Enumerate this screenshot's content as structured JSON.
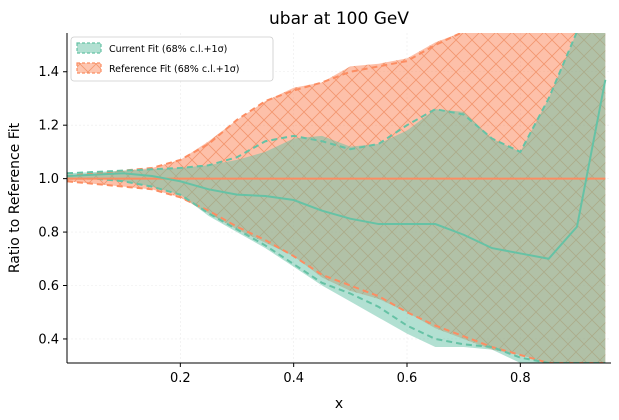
{
  "chart_data": {
    "type": "area",
    "title": "ubar at 100 GeV",
    "xlabel": "x",
    "ylabel": "Ratio to Reference Fit",
    "xlim": [
      0.0,
      0.96
    ],
    "ylim": [
      0.31,
      1.545
    ],
    "xticks": [
      0.2,
      0.4,
      0.6,
      0.8
    ],
    "xtick_labels": [
      "0.2",
      "0.4",
      "0.6",
      "0.8"
    ],
    "yticks": [
      0.4,
      0.6,
      0.8,
      1.0,
      1.2,
      1.4
    ],
    "ytick_labels": [
      "0.4",
      "0.6",
      "0.8",
      "1.0",
      "1.2",
      "1.4"
    ],
    "grid": true,
    "legend_position": "top-left",
    "x": [
      0.0,
      0.05,
      0.1,
      0.15,
      0.2,
      0.25,
      0.3,
      0.35,
      0.4,
      0.45,
      0.5,
      0.55,
      0.6,
      0.65,
      0.7,
      0.75,
      0.8,
      0.85,
      0.9,
      0.95
    ],
    "series": [
      {
        "name": "Current Fit (68% c.l.+1σ)",
        "color": "#66c2a5",
        "central": [
          1.01,
          1.015,
          1.02,
          1.01,
          0.99,
          0.96,
          0.94,
          0.935,
          0.92,
          0.88,
          0.85,
          0.83,
          0.83,
          0.83,
          0.79,
          0.74,
          0.72,
          0.7,
          0.82,
          1.37
        ],
        "band_upper": [
          1.02,
          1.025,
          1.03,
          1.035,
          1.04,
          1.05,
          1.07,
          1.1,
          1.15,
          1.16,
          1.12,
          1.13,
          1.18,
          1.26,
          1.25,
          1.15,
          1.1,
          1.3,
          1.55,
          1.55
        ],
        "band_lower": [
          1.0,
          1.0,
          0.99,
          0.97,
          0.94,
          0.86,
          0.8,
          0.74,
          0.67,
          0.6,
          0.54,
          0.48,
          0.42,
          0.37,
          0.37,
          0.36,
          0.31,
          0.31,
          0.31,
          0.31
        ],
        "dashed_upper": [
          1.02,
          1.025,
          1.03,
          1.035,
          1.04,
          1.05,
          1.08,
          1.14,
          1.16,
          1.14,
          1.11,
          1.13,
          1.2,
          1.26,
          1.24,
          1.15,
          1.1,
          1.3,
          1.55,
          1.55
        ],
        "dashed_lower": [
          1.0,
          1.0,
          0.99,
          0.97,
          0.94,
          0.87,
          0.81,
          0.75,
          0.68,
          0.61,
          0.57,
          0.52,
          0.45,
          0.4,
          0.38,
          0.37,
          0.33,
          0.31,
          0.31,
          0.31
        ]
      },
      {
        "name": "Reference Fit (68% c.l.+1σ)",
        "color": "#fc8d62",
        "central": [
          1.0,
          1.0,
          1.0,
          1.0,
          1.0,
          1.0,
          1.0,
          1.0,
          1.0,
          1.0,
          1.0,
          1.0,
          1.0,
          1.0,
          1.0,
          1.0,
          1.0,
          1.0,
          1.0,
          1.0
        ],
        "band_upper": [
          1.01,
          1.02,
          1.03,
          1.04,
          1.07,
          1.14,
          1.22,
          1.29,
          1.34,
          1.36,
          1.42,
          1.43,
          1.45,
          1.51,
          1.55,
          1.55,
          1.55,
          1.55,
          1.55,
          1.55
        ],
        "band_lower": [
          0.99,
          0.98,
          0.97,
          0.96,
          0.93,
          0.87,
          0.81,
          0.76,
          0.71,
          0.63,
          0.58,
          0.55,
          0.5,
          0.44,
          0.4,
          0.36,
          0.34,
          0.31,
          0.31,
          0.31
        ],
        "dashed_upper": [
          1.01,
          1.02,
          1.03,
          1.04,
          1.07,
          1.13,
          1.22,
          1.29,
          1.33,
          1.36,
          1.4,
          1.42,
          1.44,
          1.5,
          1.55,
          1.55,
          1.55,
          1.55,
          1.55,
          1.55
        ],
        "dashed_lower": [
          0.99,
          0.98,
          0.97,
          0.96,
          0.93,
          0.88,
          0.82,
          0.77,
          0.71,
          0.64,
          0.6,
          0.56,
          0.5,
          0.45,
          0.41,
          0.37,
          0.34,
          0.31,
          0.31,
          0.31
        ]
      }
    ]
  }
}
